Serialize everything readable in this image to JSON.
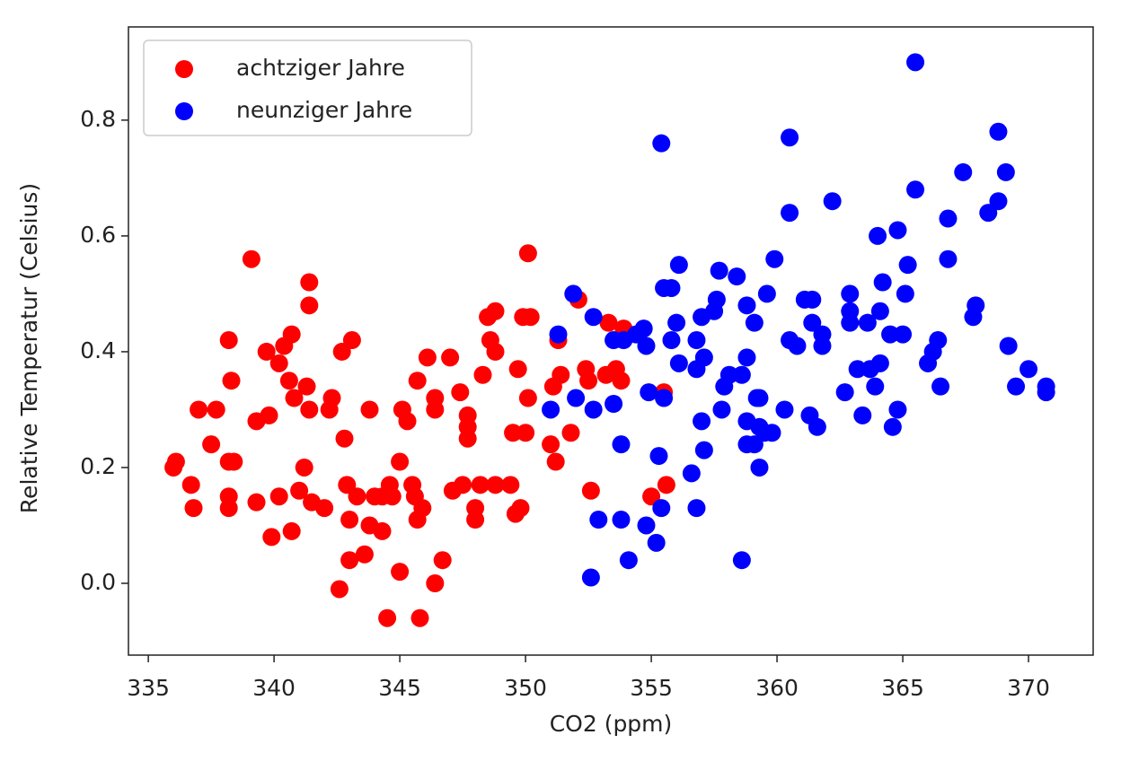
{
  "chart_data": {
    "type": "scatter",
    "xlabel": "CO2 (ppm)",
    "ylabel": "Relative Temperatur (Celsius)",
    "xlim": [
      334.21,
      372.57
    ],
    "ylim": [
      -0.124,
      0.961
    ],
    "xticks": [
      335,
      340,
      345,
      350,
      355,
      360,
      365,
      370
    ],
    "yticks": [
      {
        "value": 0,
        "label": "0.0"
      },
      0.2,
      0.4,
      0.6,
      0.8
    ],
    "legend": "upper left",
    "series": [
      {
        "name": "achtziger Jahre",
        "color": "#ff0000",
        "x": [
          336.0,
          336.1,
          336.7,
          336.8,
          337.0,
          337.7,
          337.5,
          338.2,
          338.3,
          338.2,
          338.4,
          338.2,
          338.2,
          339.1,
          339.3,
          339.3,
          339.7,
          339.8,
          339.9,
          340.2,
          340.2,
          340.4,
          340.7,
          340.6,
          340.8,
          340.7,
          341.0,
          341.2,
          341.3,
          341.4,
          341.4,
          341.4,
          341.5,
          342.0,
          342.2,
          342.3,
          342.6,
          342.7,
          342.8,
          343.1,
          342.9,
          343.0,
          343.0,
          343.3,
          343.6,
          343.8,
          343.8,
          344.0,
          344.3,
          344.3,
          344.5,
          344.6,
          344.7,
          345.0,
          345.0,
          345.1,
          345.3,
          345.5,
          345.6,
          345.7,
          345.7,
          345.8,
          345.9,
          346.1,
          346.4,
          346.4,
          346.4,
          346.7,
          347.0,
          347.1,
          347.4,
          347.5,
          347.7,
          347.7,
          347.7,
          348.0,
          348.0,
          348.2,
          348.3,
          348.5,
          348.6,
          348.8,
          348.8,
          348.8,
          349.4,
          349.5,
          349.6,
          349.8,
          349.7,
          349.9,
          350.0,
          350.1,
          350.1,
          350.2,
          351.0,
          351.1,
          351.2,
          351.3,
          351.4,
          351.8,
          352.1,
          352.4,
          352.5,
          352.6,
          353.3,
          353.2,
          353.6,
          353.8,
          353.9,
          355.0,
          355.5,
          355.6
        ],
        "values": [
          0.2,
          0.21,
          0.17,
          0.13,
          0.3,
          0.3,
          0.24,
          0.42,
          0.35,
          0.21,
          0.21,
          0.15,
          0.13,
          0.56,
          0.28,
          0.14,
          0.4,
          0.29,
          0.08,
          0.38,
          0.15,
          0.41,
          0.43,
          0.35,
          0.32,
          0.09,
          0.16,
          0.2,
          0.34,
          0.52,
          0.48,
          0.3,
          0.14,
          0.13,
          0.3,
          0.32,
          -0.01,
          0.4,
          0.25,
          0.42,
          0.17,
          0.11,
          0.04,
          0.15,
          0.05,
          0.1,
          0.3,
          0.15,
          0.09,
          0.15,
          -0.06,
          0.17,
          0.15,
          0.02,
          0.21,
          0.3,
          0.28,
          0.17,
          0.15,
          0.11,
          0.35,
          -0.06,
          0.13,
          0.39,
          0.32,
          0.3,
          0.0,
          0.04,
          0.39,
          0.16,
          0.33,
          0.17,
          0.29,
          0.27,
          0.25,
          0.13,
          0.11,
          0.17,
          0.36,
          0.46,
          0.42,
          0.4,
          0.47,
          0.17,
          0.17,
          0.26,
          0.12,
          0.13,
          0.37,
          0.46,
          0.26,
          0.57,
          0.32,
          0.46,
          0.24,
          0.34,
          0.21,
          0.42,
          0.36,
          0.26,
          0.49,
          0.37,
          0.35,
          0.16,
          0.45,
          0.36,
          0.37,
          0.35,
          0.44,
          0.15,
          0.33,
          0.17
        ]
      },
      {
        "name": "neunziger Jahre",
        "color": "#0000ff",
        "x": [
          351.0,
          351.3,
          351.9,
          352.0,
          352.6,
          352.7,
          352.7,
          352.9,
          353.5,
          353.5,
          353.8,
          353.8,
          354.1,
          353.9,
          354.4,
          354.8,
          354.7,
          354.8,
          354.9,
          355.2,
          355.3,
          355.4,
          355.4,
          355.5,
          355.5,
          355.8,
          355.8,
          356.0,
          356.1,
          356.1,
          356.6,
          356.8,
          356.8,
          356.8,
          357.0,
          357.0,
          357.1,
          357.1,
          357.5,
          357.6,
          357.8,
          357.7,
          357.9,
          358.1,
          358.4,
          358.6,
          358.6,
          358.8,
          358.8,
          358.8,
          358.8,
          359.1,
          359.1,
          359.2,
          359.3,
          359.3,
          359.3,
          359.5,
          359.6,
          359.8,
          359.9,
          360.3,
          360.5,
          360.5,
          360.5,
          360.8,
          361.1,
          361.3,
          361.4,
          361.4,
          361.6,
          361.8,
          361.8,
          362.2,
          362.7,
          362.9,
          362.9,
          362.9,
          363.2,
          363.4,
          363.6,
          363.7,
          363.9,
          364.0,
          364.1,
          364.1,
          364.2,
          364.5,
          364.6,
          364.8,
          364.8,
          365.0,
          365.1,
          365.2,
          365.5,
          365.5,
          366.0,
          366.2,
          366.4,
          366.5,
          366.8,
          366.8,
          367.4,
          367.8,
          367.9,
          368.4,
          368.8,
          368.8,
          369.1,
          369.2,
          369.5,
          370.0,
          370.7,
          370.7
        ],
        "values": [
          0.3,
          0.43,
          0.5,
          0.32,
          0.01,
          0.46,
          0.3,
          0.11,
          0.31,
          0.42,
          0.11,
          0.24,
          0.04,
          0.42,
          0.43,
          0.1,
          0.44,
          0.41,
          0.33,
          0.07,
          0.22,
          0.76,
          0.13,
          0.51,
          0.32,
          0.51,
          0.42,
          0.45,
          0.55,
          0.38,
          0.19,
          0.42,
          0.13,
          0.37,
          0.28,
          0.46,
          0.39,
          0.23,
          0.47,
          0.49,
          0.3,
          0.54,
          0.34,
          0.36,
          0.53,
          0.04,
          0.36,
          0.48,
          0.39,
          0.28,
          0.24,
          0.24,
          0.45,
          0.32,
          0.2,
          0.27,
          0.32,
          0.26,
          0.5,
          0.26,
          0.56,
          0.3,
          0.64,
          0.77,
          0.42,
          0.41,
          0.49,
          0.29,
          0.49,
          0.45,
          0.27,
          0.41,
          0.43,
          0.66,
          0.33,
          0.5,
          0.47,
          0.45,
          0.37,
          0.29,
          0.45,
          0.37,
          0.34,
          0.6,
          0.47,
          0.38,
          0.52,
          0.43,
          0.27,
          0.61,
          0.3,
          0.43,
          0.5,
          0.55,
          0.9,
          0.68,
          0.38,
          0.4,
          0.42,
          0.34,
          0.56,
          0.63,
          0.71,
          0.46,
          0.48,
          0.64,
          0.66,
          0.78,
          0.71,
          0.41,
          0.34,
          0.37,
          0.34,
          0.33
        ]
      }
    ]
  }
}
